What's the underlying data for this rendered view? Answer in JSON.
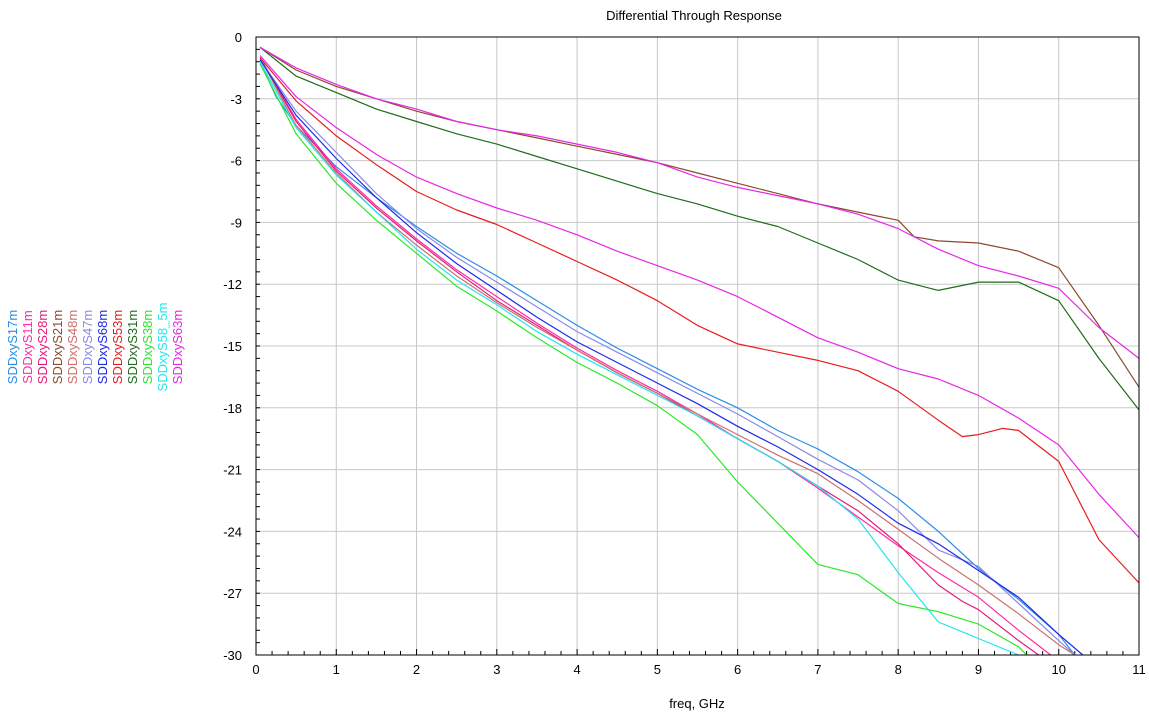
{
  "chart_data": {
    "type": "line",
    "title": "Differential Through Response",
    "xlabel": "freq, GHz",
    "ylabel": "",
    "xlim": [
      0,
      11
    ],
    "ylim": [
      -30,
      0
    ],
    "x_ticks": [
      0,
      1,
      2,
      3,
      4,
      5,
      6,
      7,
      8,
      9,
      10,
      11
    ],
    "y_ticks": [
      0,
      -3,
      -6,
      -9,
      -12,
      -15,
      -18,
      -21,
      -24,
      -27,
      -30
    ],
    "grid": true,
    "legend_position": "left, rotated vertical",
    "series": [
      {
        "name": "SDDxyS17m",
        "color": "#2a8ee8",
        "x": [
          0.05,
          0.25,
          0.5,
          1,
          1.5,
          2,
          2.5,
          3,
          3.5,
          4,
          4.5,
          5,
          5.5,
          6,
          6.5,
          7,
          7.5,
          8,
          8.5,
          9,
          9.5,
          10,
          10.2
        ],
        "y": [
          -1.2,
          -2.9,
          -4.3,
          -6.3,
          -7.8,
          -9.2,
          -10.5,
          -11.6,
          -12.8,
          -14.0,
          -15.1,
          -16.1,
          -17.1,
          -18.0,
          -19.1,
          -20.0,
          -21.1,
          -22.4,
          -24.0,
          -25.8,
          -27.3,
          -29.0,
          -30.0
        ]
      },
      {
        "name": "SDDxyS11m",
        "color": "#ff2aa6",
        "x": [
          0.05,
          0.5,
          1,
          1.5,
          2,
          2.5,
          3,
          3.5,
          4,
          4.5,
          5,
          5.5,
          6,
          6.5,
          7,
          7.5,
          8,
          8.5,
          9,
          9.5,
          9.9
        ],
        "y": [
          -1.0,
          -4.0,
          -6.4,
          -8.2,
          -9.8,
          -11.3,
          -12.6,
          -13.9,
          -15.1,
          -16.2,
          -17.2,
          -18.3,
          -19.5,
          -20.6,
          -21.9,
          -23.3,
          -24.7,
          -26.0,
          -27.2,
          -28.8,
          -30.0
        ]
      },
      {
        "name": "SDDxyS28m",
        "color": "#e5197a",
        "x": [
          0.05,
          0.5,
          1,
          1.5,
          2,
          2.5,
          3,
          3.5,
          4,
          4.5,
          5,
          5.5,
          6,
          6.5,
          7,
          7.5,
          8,
          8.5,
          8.8,
          9,
          9.5,
          9.75
        ],
        "y": [
          -1.0,
          -4.1,
          -6.5,
          -8.3,
          -9.9,
          -11.4,
          -12.8,
          -14.0,
          -15.2,
          -16.3,
          -17.3,
          -18.4,
          -19.5,
          -20.6,
          -21.8,
          -23.0,
          -24.6,
          -26.6,
          -27.4,
          -27.8,
          -29.3,
          -30.0
        ]
      },
      {
        "name": "SDDxyS21m",
        "color": "#8b4a2b",
        "x": [
          0.05,
          0.5,
          1,
          1.5,
          2,
          2.5,
          3,
          3.5,
          4,
          4.5,
          5,
          5.5,
          6,
          6.5,
          7,
          7.5,
          8,
          8.2,
          8.5,
          9,
          9.5,
          10,
          10.5,
          11
        ],
        "y": [
          -0.5,
          -1.6,
          -2.4,
          -3.0,
          -3.6,
          -4.1,
          -4.5,
          -4.9,
          -5.3,
          -5.7,
          -6.1,
          -6.6,
          -7.1,
          -7.6,
          -8.1,
          -8.5,
          -8.9,
          -9.7,
          -9.9,
          -10.0,
          -10.4,
          -11.2,
          -14.0,
          -17.0
        ]
      },
      {
        "name": "SDDxyS48m",
        "color": "#cd6f6f",
        "x": [
          0.05,
          0.5,
          1,
          1.5,
          2,
          2.5,
          3,
          3.5,
          4,
          4.5,
          5,
          5.5,
          6,
          6.5,
          7,
          7.5,
          8,
          8.5,
          9,
          9.5,
          10,
          10.2
        ],
        "y": [
          -1.0,
          -4.3,
          -6.6,
          -8.5,
          -10.1,
          -11.6,
          -12.9,
          -14.1,
          -15.2,
          -16.3,
          -17.3,
          -18.3,
          -19.3,
          -20.3,
          -21.2,
          -22.5,
          -23.9,
          -25.3,
          -26.6,
          -28.0,
          -29.5,
          -30.0
        ]
      },
      {
        "name": "SDDxyS47m",
        "color": "#8a8ae8",
        "x": [
          0.05,
          0.5,
          1,
          1.5,
          2,
          2.5,
          3,
          3.5,
          4,
          4.5,
          5,
          5.5,
          6,
          6.5,
          7,
          7.5,
          8,
          8.5,
          9,
          9.5,
          10,
          10.2
        ],
        "y": [
          -1.1,
          -3.6,
          -5.6,
          -7.6,
          -9.3,
          -10.7,
          -11.9,
          -13.1,
          -14.3,
          -15.3,
          -16.3,
          -17.3,
          -18.3,
          -19.4,
          -20.5,
          -21.5,
          -23.0,
          -24.9,
          -25.7,
          -27.5,
          -29.3,
          -30.0
        ]
      },
      {
        "name": "SDDxyS68m",
        "color": "#1c2ae8",
        "x": [
          0.05,
          0.5,
          1,
          1.5,
          2,
          2.5,
          3,
          3.5,
          4,
          4.5,
          5,
          5.5,
          6,
          6.5,
          7,
          7.5,
          8,
          8.5,
          9,
          9.5,
          10,
          10.3
        ],
        "y": [
          -1.1,
          -3.8,
          -5.9,
          -7.8,
          -9.5,
          -11.0,
          -12.3,
          -13.6,
          -14.8,
          -15.8,
          -16.8,
          -17.8,
          -18.9,
          -19.9,
          -21.0,
          -22.2,
          -23.6,
          -24.6,
          -25.9,
          -27.2,
          -29.0,
          -30.0
        ]
      },
      {
        "name": "SDDxyS53m",
        "color": "#e81c1c",
        "x": [
          0.05,
          0.5,
          1,
          1.5,
          2,
          2.5,
          3,
          3.5,
          4,
          4.5,
          5,
          5.5,
          6,
          6.5,
          7,
          7.5,
          8,
          8.5,
          8.8,
          9,
          9.3,
          9.5,
          10,
          10.5,
          11
        ],
        "y": [
          -1.0,
          -3.1,
          -4.8,
          -6.2,
          -7.5,
          -8.4,
          -9.1,
          -10.0,
          -10.9,
          -11.8,
          -12.8,
          -14.0,
          -14.9,
          -15.3,
          -15.7,
          -16.2,
          -17.2,
          -18.6,
          -19.4,
          -19.3,
          -19.0,
          -19.1,
          -20.6,
          -24.4,
          -26.5
        ]
      },
      {
        "name": "SDDxyS31m",
        "color": "#206b1c",
        "x": [
          0.05,
          0.5,
          1,
          1.5,
          2,
          2.5,
          3,
          3.5,
          4,
          4.5,
          5,
          5.5,
          6,
          6.5,
          7,
          7.5,
          8,
          8.5,
          9,
          9.5,
          10,
          10.5,
          11
        ],
        "y": [
          -0.5,
          -1.9,
          -2.7,
          -3.5,
          -4.1,
          -4.7,
          -5.2,
          -5.8,
          -6.4,
          -7.0,
          -7.6,
          -8.1,
          -8.7,
          -9.2,
          -10.0,
          -10.8,
          -11.8,
          -12.3,
          -11.9,
          -11.9,
          -12.8,
          -15.6,
          -18.1
        ]
      },
      {
        "name": "SDDxyS38m",
        "color": "#2ae82a",
        "x": [
          0.05,
          0.5,
          1,
          1.5,
          2,
          2.5,
          3,
          3.5,
          4,
          4.5,
          5,
          5.5,
          6,
          6.5,
          7,
          7.5,
          8,
          8.5,
          9,
          9.5,
          9.6
        ],
        "y": [
          -1.3,
          -4.7,
          -7.1,
          -8.9,
          -10.5,
          -12.1,
          -13.3,
          -14.6,
          -15.8,
          -16.8,
          -17.9,
          -19.3,
          -21.6,
          -23.6,
          -25.6,
          -26.1,
          -27.5,
          -27.9,
          -28.5,
          -29.6,
          -30.0
        ]
      },
      {
        "name": "SDDxyS58_5m",
        "color": "#1fe6f0",
        "x": [
          0.05,
          0.5,
          1,
          1.5,
          2,
          2.5,
          3,
          3.5,
          4,
          4.5,
          5,
          5.5,
          6,
          6.5,
          7,
          7.5,
          8,
          8.5,
          9,
          9.5
        ],
        "y": [
          -1.2,
          -4.4,
          -6.7,
          -8.5,
          -10.3,
          -11.8,
          -13.0,
          -14.3,
          -15.4,
          -16.4,
          -17.4,
          -18.4,
          -19.5,
          -20.6,
          -21.8,
          -23.4,
          -26.0,
          -28.4,
          -29.2,
          -30.0
        ]
      },
      {
        "name": "SDDxyS63m",
        "color": "#e826e8",
        "x": [
          0.05,
          0.5,
          1,
          1.5,
          2,
          2.5,
          3,
          3.5,
          4,
          4.5,
          5,
          5.5,
          6,
          6.5,
          7,
          7.5,
          8,
          8.5,
          9,
          9.5,
          10,
          10.5,
          11
        ],
        "y": [
          -0.5,
          -1.5,
          -2.3,
          -3.0,
          -3.5,
          -4.1,
          -4.5,
          -4.8,
          -5.2,
          -5.6,
          -6.1,
          -6.8,
          -7.3,
          -7.7,
          -8.1,
          -8.6,
          -9.3,
          -10.3,
          -11.1,
          -11.6,
          -12.2,
          -14.1,
          -15.6
        ]
      },
      {
        "name": "",
        "color": "#e826e8",
        "x": [
          0.05,
          0.5,
          1,
          1.5,
          2,
          2.5,
          3,
          3.5,
          4,
          4.5,
          5,
          5.5,
          6,
          6.5,
          7,
          7.5,
          8,
          8.5,
          9,
          9.5,
          10,
          10.5,
          11
        ],
        "y": [
          -0.9,
          -2.9,
          -4.4,
          -5.7,
          -6.8,
          -7.6,
          -8.3,
          -8.9,
          -9.6,
          -10.4,
          -11.1,
          -11.8,
          -12.6,
          -13.6,
          -14.6,
          -15.3,
          -16.1,
          -16.6,
          -17.4,
          -18.5,
          -19.8,
          -22.2,
          -24.3
        ]
      }
    ]
  }
}
